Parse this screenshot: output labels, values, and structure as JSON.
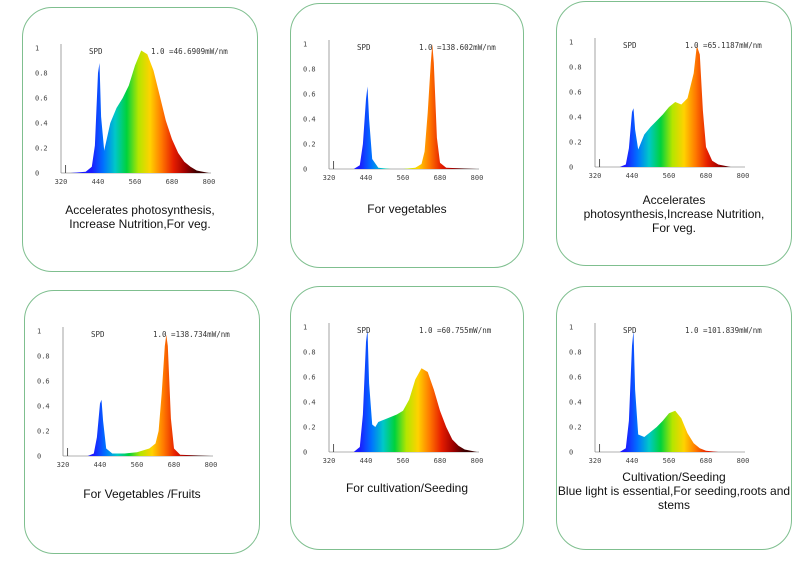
{
  "rainbow_colors": [
    "#1b1bff",
    "#0072ff",
    "#00c8c8",
    "#00d23c",
    "#b4e600",
    "#ffd200",
    "#ff7800",
    "#e61e00",
    "#a00000",
    "#3c0000"
  ],
  "chart_data": [
    {
      "type": "area",
      "title": "SPD",
      "peak_label": "1.0 =46.6909mW/nm",
      "x_ticks": [
        "320",
        "440",
        "560",
        "680",
        "800"
      ],
      "y_ticks": [
        "0",
        "0.2",
        "0.4",
        "0.6",
        "0.8",
        "1"
      ],
      "xlim": [
        320,
        800
      ],
      "ylim": [
        0,
        1
      ],
      "x": [
        320,
        350,
        400,
        420,
        430,
        440,
        445,
        450,
        460,
        480,
        500,
        520,
        540,
        560,
        580,
        600,
        620,
        640,
        660,
        680,
        700,
        720,
        740,
        760,
        780,
        800
      ],
      "y": [
        0,
        0,
        0.01,
        0.05,
        0.22,
        0.8,
        0.88,
        0.45,
        0.18,
        0.4,
        0.52,
        0.6,
        0.7,
        0.86,
        0.98,
        0.95,
        0.82,
        0.62,
        0.42,
        0.27,
        0.16,
        0.09,
        0.05,
        0.02,
        0.01,
        0
      ],
      "caption": [
        "Accelerates photosynthesis,",
        "Increase Nutrition,For veg."
      ]
    },
    {
      "type": "area",
      "title": "SPD",
      "peak_label": "1.0 =138.602mW/nm",
      "x_ticks": [
        "320",
        "440",
        "560",
        "680",
        "800"
      ],
      "y_ticks": [
        "0",
        "0.2",
        "0.4",
        "0.6",
        "0.8",
        "1"
      ],
      "xlim": [
        320,
        800
      ],
      "ylim": [
        0,
        1
      ],
      "x": [
        320,
        400,
        420,
        430,
        440,
        445,
        450,
        460,
        480,
        520,
        560,
        600,
        620,
        630,
        640,
        650,
        655,
        660,
        670,
        680,
        700,
        800
      ],
      "y": [
        0,
        0,
        0.03,
        0.2,
        0.56,
        0.66,
        0.4,
        0.08,
        0.01,
        0,
        0,
        0.01,
        0.04,
        0.14,
        0.45,
        0.85,
        1.0,
        0.85,
        0.25,
        0.05,
        0.01,
        0
      ],
      "caption": [
        "For vegetables"
      ]
    },
    {
      "type": "area",
      "title": "SPD",
      "peak_label": "1.0 =65.1187mW/nm",
      "x_ticks": [
        "320",
        "440",
        "560",
        "680",
        "800"
      ],
      "y_ticks": [
        "0",
        "0.2",
        "0.4",
        "0.6",
        "0.8",
        "1"
      ],
      "xlim": [
        320,
        800
      ],
      "ylim": [
        0,
        1
      ],
      "x": [
        320,
        400,
        420,
        430,
        440,
        445,
        450,
        460,
        480,
        500,
        520,
        540,
        560,
        580,
        600,
        620,
        640,
        650,
        660,
        670,
        680,
        700,
        720,
        760,
        800
      ],
      "y": [
        0,
        0,
        0.02,
        0.15,
        0.44,
        0.47,
        0.3,
        0.14,
        0.26,
        0.32,
        0.37,
        0.42,
        0.48,
        0.52,
        0.5,
        0.55,
        0.75,
        0.97,
        0.9,
        0.45,
        0.16,
        0.05,
        0.02,
        0,
        0
      ],
      "caption": [
        "Accelerates",
        "photosynthesis,Increase Nutrition,",
        "For veg."
      ]
    },
    {
      "type": "area",
      "title": "SPD",
      "peak_label": "1.0 =138.734mW/nm",
      "x_ticks": [
        "320",
        "440",
        "560",
        "680",
        "800"
      ],
      "y_ticks": [
        "0",
        "0.2",
        "0.4",
        "0.6",
        "0.8",
        "1"
      ],
      "xlim": [
        320,
        800
      ],
      "ylim": [
        0,
        1
      ],
      "x": [
        320,
        400,
        420,
        430,
        440,
        445,
        450,
        460,
        480,
        520,
        560,
        600,
        620,
        630,
        640,
        650,
        655,
        660,
        670,
        680,
        700,
        800
      ],
      "y": [
        0,
        0,
        0.02,
        0.15,
        0.42,
        0.45,
        0.28,
        0.06,
        0.02,
        0.02,
        0.03,
        0.06,
        0.1,
        0.2,
        0.5,
        0.88,
        0.97,
        0.88,
        0.3,
        0.06,
        0.01,
        0
      ],
      "caption": [
        "For Vegetables /Fruits"
      ]
    },
    {
      "type": "area",
      "title": "SPD",
      "peak_label": "1.0 =60.755mW/nm",
      "x_ticks": [
        "320",
        "440",
        "560",
        "680",
        "800"
      ],
      "y_ticks": [
        "0",
        "0.2",
        "0.4",
        "0.6",
        "0.8",
        "1"
      ],
      "xlim": [
        320,
        800
      ],
      "ylim": [
        0,
        1
      ],
      "x": [
        320,
        400,
        420,
        430,
        440,
        445,
        450,
        460,
        470,
        480,
        500,
        520,
        540,
        560,
        580,
        600,
        620,
        640,
        660,
        680,
        700,
        720,
        740,
        760,
        800
      ],
      "y": [
        0,
        0,
        0.04,
        0.3,
        0.88,
        0.98,
        0.55,
        0.22,
        0.2,
        0.24,
        0.26,
        0.28,
        0.3,
        0.33,
        0.42,
        0.58,
        0.67,
        0.64,
        0.5,
        0.33,
        0.2,
        0.1,
        0.05,
        0.02,
        0
      ],
      "caption": [
        "For cultivation/Seeding"
      ]
    },
    {
      "type": "area",
      "title": "SPD",
      "peak_label": "1.0 =101.839mW/nm",
      "x_ticks": [
        "320",
        "440",
        "560",
        "680",
        "800"
      ],
      "y_ticks": [
        "0",
        "0.2",
        "0.4",
        "0.6",
        "0.8",
        "1"
      ],
      "xlim": [
        320,
        800
      ],
      "ylim": [
        0,
        1
      ],
      "x": [
        320,
        400,
        420,
        430,
        440,
        445,
        450,
        460,
        480,
        500,
        520,
        540,
        560,
        580,
        600,
        620,
        640,
        660,
        680,
        720,
        800
      ],
      "y": [
        0,
        0,
        0.03,
        0.25,
        0.85,
        0.97,
        0.5,
        0.14,
        0.12,
        0.16,
        0.2,
        0.25,
        0.31,
        0.33,
        0.27,
        0.15,
        0.07,
        0.03,
        0.01,
        0,
        0
      ],
      "caption": [
        "Cultivation/Seeding",
        "Blue light is essential,For seeding,roots and",
        "stems"
      ]
    }
  ]
}
